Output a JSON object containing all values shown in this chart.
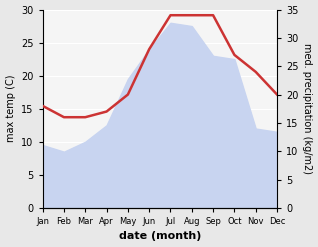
{
  "months": [
    "Jan",
    "Feb",
    "Mar",
    "Apr",
    "May",
    "Jun",
    "Jul",
    "Aug",
    "Sep",
    "Oct",
    "Nov",
    "Dec"
  ],
  "max_temp": [
    9.5,
    8.5,
    10.0,
    12.5,
    19.5,
    24.0,
    28.0,
    27.5,
    23.0,
    22.5,
    12.0,
    11.5
  ],
  "precipitation": [
    18.0,
    16.0,
    16.0,
    17.0,
    20.0,
    28.0,
    34.0,
    34.0,
    34.0,
    27.0,
    24.0,
    20.0
  ],
  "temp_fill_color": "#c8d4f0",
  "precip_color": "#cc3333",
  "left_ylabel": "max temp (C)",
  "right_ylabel": "med. precipitation (kg/m2)",
  "xlabel": "date (month)",
  "ylim_left": [
    0,
    30
  ],
  "ylim_right": [
    0,
    35
  ],
  "left_yticks": [
    0,
    5,
    10,
    15,
    20,
    25,
    30
  ],
  "right_yticks": [
    0,
    5,
    10,
    15,
    20,
    25,
    30,
    35
  ],
  "bg_color": "#e8e8e8",
  "plot_bg_color": "#f5f5f5"
}
